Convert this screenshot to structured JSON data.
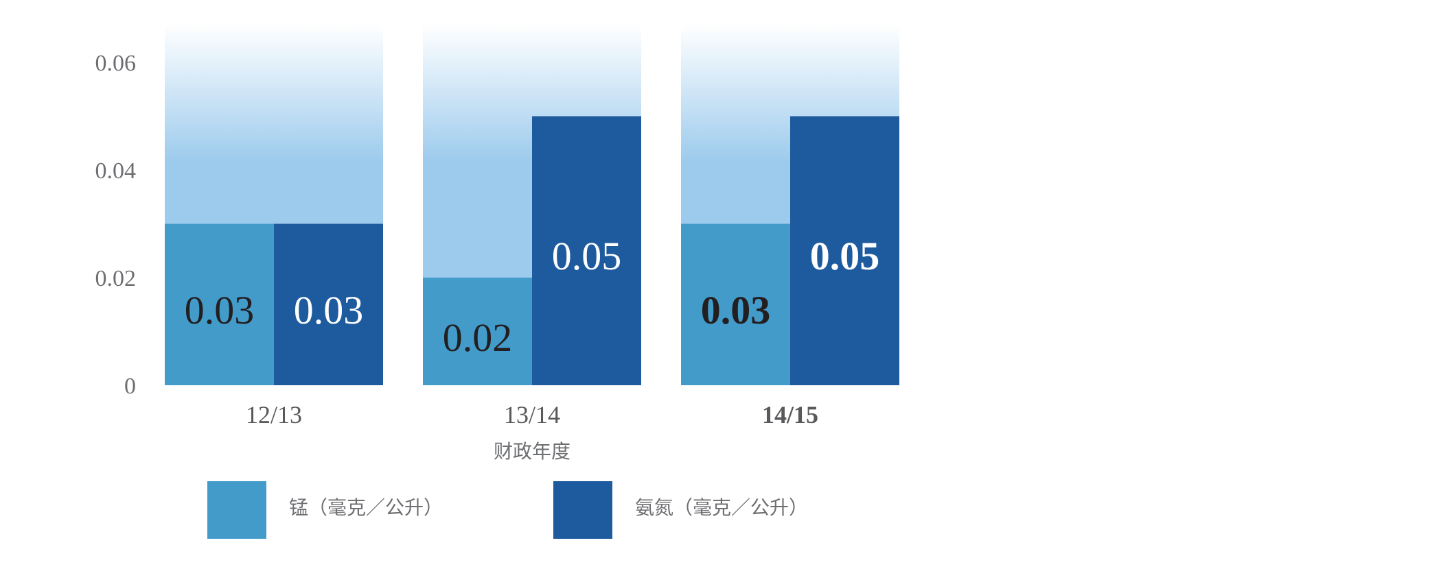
{
  "chart_data": {
    "type": "bar",
    "xlabel": "财政年度",
    "ylabel": "",
    "ylim": [
      0,
      0.067
    ],
    "y_ticks": [
      0,
      0.02,
      0.04,
      0.06
    ],
    "y_tick_labels": [
      "0",
      "0.02",
      "0.04",
      "0.06"
    ],
    "grid": false,
    "legend_position": "bottom",
    "categories": [
      "12/13",
      "13/14",
      "14/15"
    ],
    "highlight_category": "14/15",
    "series": [
      {
        "name": "锰（毫克／公升）",
        "values": [
          0.03,
          0.02,
          0.03
        ],
        "data_labels": [
          "0.03",
          "0.02",
          "0.03"
        ],
        "color": "#439bca"
      },
      {
        "name": "氨氮（毫克／公升）",
        "values": [
          0.03,
          0.05,
          0.05
        ],
        "data_labels": [
          "0.03",
          "0.05",
          "0.05"
        ],
        "color": "#1e5b9e"
      }
    ],
    "background_gradient": [
      "#9dcbed",
      "#ffffff"
    ],
    "label_colors": {
      "dark": "#231f20",
      "light": "#ffffff"
    }
  }
}
